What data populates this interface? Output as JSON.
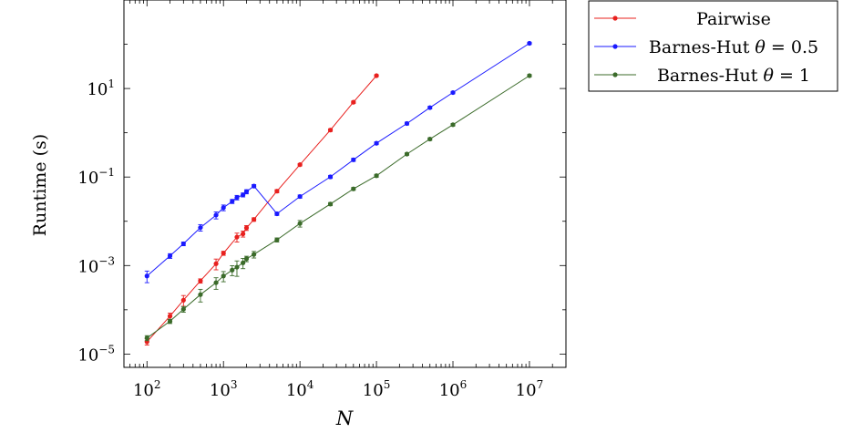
{
  "chart_data": {
    "type": "line",
    "xlabel": "N",
    "ylabel": "Runtime (s)",
    "x_scale": "log",
    "y_scale": "log",
    "xlim": [
      50,
      30000000
    ],
    "ylim": [
      5e-06,
      1000
    ],
    "x_ticks": [
      {
        "value": 100,
        "base": "10",
        "exp": "2"
      },
      {
        "value": 1000,
        "base": "10",
        "exp": "3"
      },
      {
        "value": 10000,
        "base": "10",
        "exp": "4"
      },
      {
        "value": 100000,
        "base": "10",
        "exp": "5"
      },
      {
        "value": 1000000,
        "base": "10",
        "exp": "6"
      },
      {
        "value": 10000000,
        "base": "10",
        "exp": "7"
      }
    ],
    "y_ticks": [
      {
        "value": 1e-05,
        "base": "10",
        "exp": "−5"
      },
      {
        "value": 0.001,
        "base": "10",
        "exp": "−3"
      },
      {
        "value": 0.1,
        "base": "10",
        "exp": "−1"
      },
      {
        "value": 10,
        "base": "10",
        "exp": "1"
      }
    ],
    "grid": false,
    "legend_position": "outside-top-right",
    "series": [
      {
        "name": "Pairwise",
        "name_parts": [
          "Pairwise"
        ],
        "color": "#e8201e",
        "x": [
          100,
          200,
          300,
          500,
          800,
          1000,
          1500,
          1800,
          2000,
          2500,
          5000,
          10000,
          25000,
          50000,
          100000
        ],
        "y": [
          1.9e-05,
          7.2e-05,
          0.000165,
          0.00045,
          0.0011,
          0.0019,
          0.0044,
          0.0052,
          0.0071,
          0.011,
          0.048,
          0.19,
          1.15,
          4.9,
          19.5
        ],
        "err": [
          3e-06,
          1.2e-05,
          4.5e-05,
          5e-05,
          0.0003,
          0.0002,
          0.001,
          0.0008,
          0.0009,
          0.001,
          0.004,
          0.012,
          0.08,
          0.3,
          1.0
        ]
      },
      {
        "name": "Barnes-Hut θ = 0.5",
        "name_parts": [
          "Barnes-Hut ",
          "θ",
          " = 0.5"
        ],
        "color": "#1a1aff",
        "x": [
          100,
          200,
          300,
          500,
          800,
          1000,
          1300,
          1500,
          1800,
          2000,
          2500,
          5000,
          10000,
          25000,
          50000,
          100000,
          250000,
          500000,
          1000000,
          10000000
        ],
        "y": [
          0.00058,
          0.00165,
          0.0031,
          0.0072,
          0.0138,
          0.0203,
          0.0282,
          0.0344,
          0.0395,
          0.0467,
          0.0625,
          0.0148,
          0.0363,
          0.101,
          0.245,
          0.58,
          1.62,
          3.7,
          8.1,
          105
        ],
        "err": [
          0.00017,
          0.0002,
          0.0003,
          0.0012,
          0.0025,
          0.003,
          0.003,
          0.004,
          0.004,
          0.005,
          0.005,
          0.0012,
          0.003,
          0.008,
          0.02,
          0.04,
          0.12,
          0.25,
          0.5,
          6
        ]
      },
      {
        "name": "Barnes-Hut θ = 1",
        "name_parts": [
          "Barnes-Hut ",
          "θ",
          " = 1"
        ],
        "color": "#3b6b2a",
        "x": [
          100,
          200,
          300,
          500,
          800,
          1000,
          1300,
          1500,
          1800,
          2000,
          2500,
          5000,
          10000,
          25000,
          50000,
          100000,
          250000,
          500000,
          1000000,
          10000000
        ],
        "y": [
          2.3e-05,
          5.5e-05,
          0.000103,
          0.00022,
          0.00041,
          0.00058,
          0.00079,
          0.00092,
          0.00115,
          0.00142,
          0.00178,
          0.0038,
          0.0089,
          0.0245,
          0.054,
          0.107,
          0.33,
          0.72,
          1.52,
          19.5
        ],
        "err": [
          3e-06,
          6e-06,
          1.5e-05,
          7e-05,
          0.00012,
          0.00015,
          0.0002,
          0.00035,
          0.0003,
          0.0002,
          0.0003,
          0.0004,
          0.0015,
          0.002,
          0.004,
          0.008,
          0.02,
          0.05,
          0.1,
          1.2
        ]
      }
    ]
  }
}
